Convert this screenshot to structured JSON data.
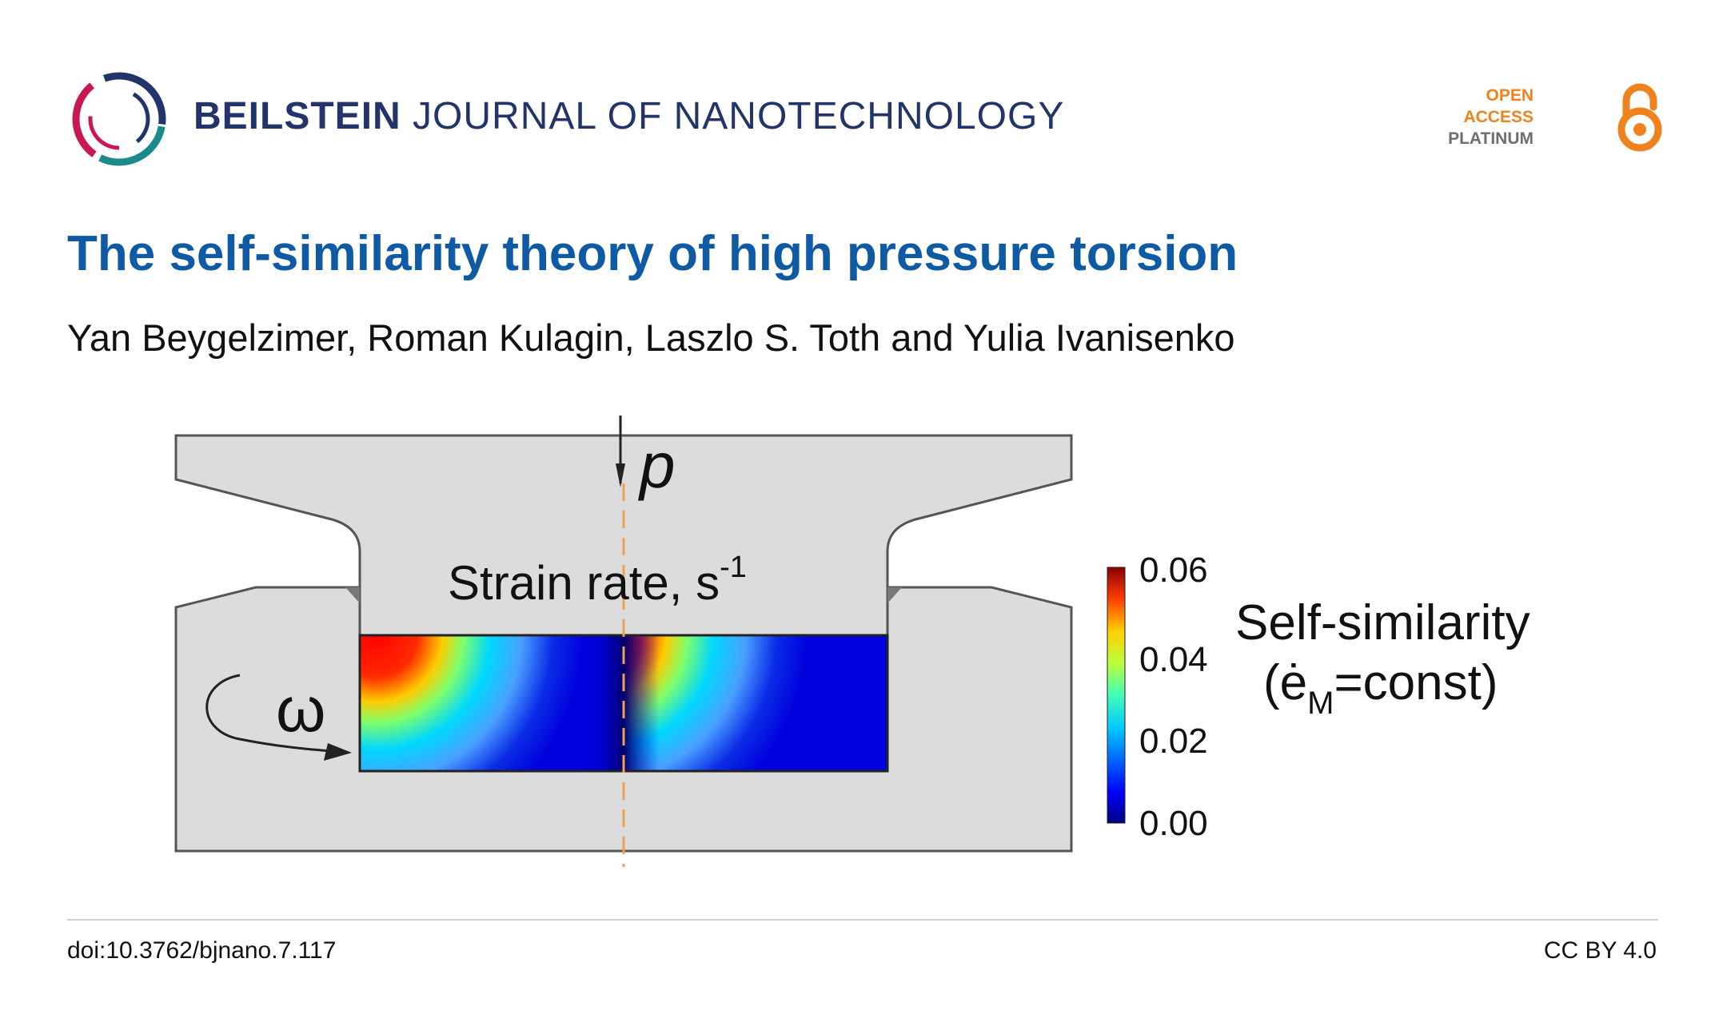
{
  "header": {
    "journal_bold": "BEILSTEIN",
    "journal_rest": " JOURNAL OF NANOTECHNOLOGY",
    "open_access": [
      "OPEN",
      "ACCESS",
      "PLATINUM"
    ]
  },
  "article": {
    "title": "The self-similarity theory of high pressure torsion",
    "authors": "Yan Beygelzimer, Roman Kulagin, Laszlo S. Toth and Yulia Ivanisenko"
  },
  "figure": {
    "pressure_label": "p",
    "rotation_label": "ω",
    "strain_rate_label": "Strain rate, s",
    "strain_rate_exp": "-1",
    "colorbar_ticks": [
      "0.06",
      "0.04",
      "0.02",
      "0.00"
    ],
    "model_label_line1": "Self-similarity",
    "model_label_line2_prefix": "(ė",
    "model_label_line2_sub": "M",
    "model_label_line2_suffix": "=const)"
  },
  "footer": {
    "doi": "doi:10.3762/bjnano.7.117",
    "license": "CC BY 4.0"
  },
  "colors": {
    "brand_blue": "#23346b",
    "title_blue": "#0f5aa5",
    "oa_orange": "#f0821e",
    "oa_gray": "#6d6e70"
  }
}
